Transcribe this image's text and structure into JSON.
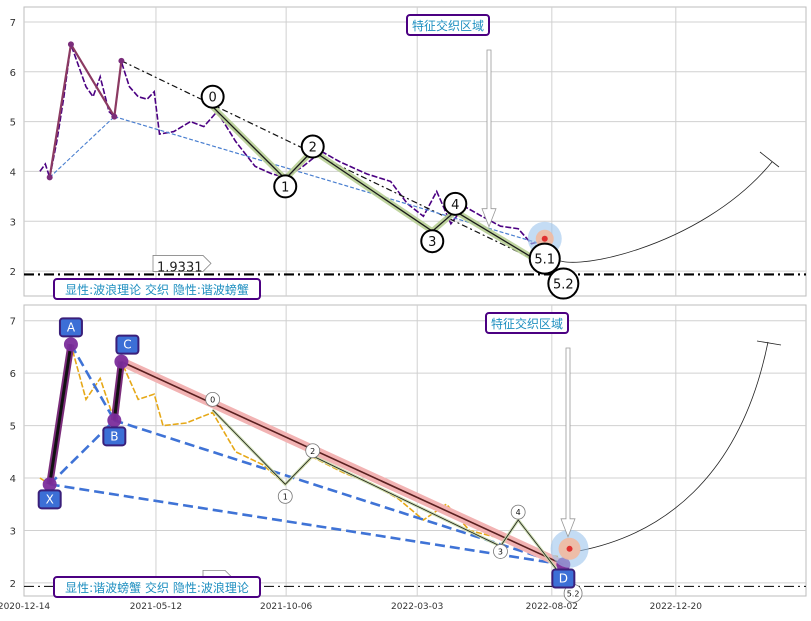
{
  "chart_data": [
    {
      "type": "line",
      "title": "",
      "xlabel": "",
      "ylabel": "",
      "ylim": [
        1.5,
        7.3
      ],
      "yticks": [
        2,
        3,
        4,
        5,
        6,
        7
      ],
      "xlim": [
        "2020-12-14",
        "2023-05-16"
      ],
      "grid": true,
      "series": [
        {
          "color": "#4b0082",
          "style": "dashed",
          "values": [
            [
              "2021-01-01",
              4.0
            ],
            [
              "2021-01-07",
              4.15
            ],
            [
              "2021-01-12",
              3.88
            ],
            [
              "2021-01-20",
              4.6
            ],
            [
              "2021-01-28",
              5.5
            ],
            [
              "2021-02-05",
              6.55
            ],
            [
              "2021-02-14",
              6.1
            ],
            [
              "2021-02-22",
              5.7
            ],
            [
              "2021-03-02",
              5.5
            ],
            [
              "2021-03-10",
              5.9
            ],
            [
              "2021-03-20",
              5.2
            ],
            [
              "2021-03-26",
              5.1
            ],
            [
              "2021-04-03",
              6.2
            ],
            [
              "2021-04-12",
              5.7
            ],
            [
              "2021-04-22",
              5.5
            ],
            [
              "2021-05-02",
              5.45
            ],
            [
              "2021-05-10",
              5.6
            ],
            [
              "2021-05-16",
              4.75
            ],
            [
              "2021-06-01",
              4.8
            ],
            [
              "2021-06-20",
              5.0
            ],
            [
              "2021-07-05",
              4.9
            ],
            [
              "2021-07-20",
              5.2
            ],
            [
              "2021-08-10",
              4.6
            ],
            [
              "2021-09-01",
              4.1
            ],
            [
              "2021-09-20",
              3.95
            ],
            [
              "2021-10-05",
              3.88
            ],
            [
              "2021-10-25",
              4.1
            ],
            [
              "2021-11-15",
              4.4
            ],
            [
              "2021-12-05",
              4.2
            ],
            [
              "2022-01-05",
              3.95
            ],
            [
              "2022-02-01",
              3.8
            ],
            [
              "2022-02-20",
              3.35
            ],
            [
              "2022-03-10",
              3.1
            ],
            [
              "2022-03-25",
              3.6
            ],
            [
              "2022-04-10",
              2.95
            ],
            [
              "2022-04-25",
              3.3
            ],
            [
              "2022-05-15",
              3.1
            ],
            [
              "2022-06-05",
              2.9
            ],
            [
              "2022-06-25",
              2.85
            ],
            [
              "2022-07-10",
              2.55
            ],
            [
              "2022-07-20",
              2.6
            ]
          ]
        }
      ],
      "pattern_points": [
        {
          "x": "2021-01-12",
          "y": 3.88
        },
        {
          "x": "2021-02-05",
          "y": 6.55
        },
        {
          "x": "2021-03-26",
          "y": 5.1
        },
        {
          "x": "2021-04-03",
          "y": 6.22
        }
      ],
      "wave_labels": [
        {
          "label": "0",
          "x": "2021-07-15",
          "y": 5.5
        },
        {
          "label": "1",
          "x": "2021-10-05",
          "y": 3.7
        },
        {
          "label": "2",
          "x": "2021-11-05",
          "y": 4.5
        },
        {
          "label": "3",
          "x": "2022-03-20",
          "y": 2.6
        },
        {
          "label": "4",
          "x": "2022-04-15",
          "y": 3.35
        },
        {
          "label": "5.1",
          "x": "2022-07-25",
          "y": 2.25
        },
        {
          "label": "5.2",
          "x": "2022-08-15",
          "y": 1.75
        }
      ],
      "reference_line": {
        "y": 1.9331,
        "label": "1.9331"
      },
      "target_zone": {
        "x": "2022-07-25",
        "y": 2.65,
        "label": "特征交织区域"
      },
      "legend_text": "显性:波浪理论 交织 隐性:谐波螃蟹"
    },
    {
      "type": "line",
      "title": "",
      "xlabel": "",
      "ylabel": "",
      "ylim": [
        1.75,
        7.3
      ],
      "yticks": [
        2,
        3,
        4,
        5,
        6,
        7
      ],
      "xlim": [
        "2020-12-14",
        "2023-05-16"
      ],
      "xticks": [
        "2020-12-14",
        "2021-05-12",
        "2021-10-06",
        "2022-03-03",
        "2022-08-02",
        "2022-12-20"
      ],
      "grid": true,
      "series": [
        {
          "color": "#e6a817",
          "style": "dashed",
          "values": [
            [
              "2021-01-01",
              4.0
            ],
            [
              "2021-01-12",
              3.88
            ],
            [
              "2021-01-28",
              5.4
            ],
            [
              "2021-02-05",
              6.55
            ],
            [
              "2021-02-22",
              5.5
            ],
            [
              "2021-03-10",
              5.9
            ],
            [
              "2021-03-26",
              5.1
            ],
            [
              "2021-04-03",
              6.22
            ],
            [
              "2021-04-22",
              5.5
            ],
            [
              "2021-05-10",
              5.6
            ],
            [
              "2021-05-20",
              5.0
            ],
            [
              "2021-06-15",
              5.05
            ],
            [
              "2021-07-15",
              5.25
            ],
            [
              "2021-08-10",
              4.5
            ],
            [
              "2021-09-10",
              4.25
            ],
            [
              "2021-10-05",
              3.88
            ],
            [
              "2021-11-05",
              4.4
            ],
            [
              "2021-12-10",
              4.1
            ],
            [
              "2022-01-10",
              3.9
            ],
            [
              "2022-02-10",
              3.6
            ],
            [
              "2022-03-10",
              3.2
            ],
            [
              "2022-04-05",
              3.5
            ],
            [
              "2022-05-01",
              3.0
            ],
            [
              "2022-06-05",
              2.85
            ],
            [
              "2022-06-25",
              2.75
            ],
            [
              "2022-07-20",
              2.55
            ],
            [
              "2022-08-10",
              2.5
            ]
          ]
        }
      ],
      "pattern_points": [
        {
          "label": "X",
          "x": "2021-01-12",
          "y": 3.88
        },
        {
          "label": "A",
          "x": "2021-02-05",
          "y": 6.55
        },
        {
          "label": "B",
          "x": "2021-03-26",
          "y": 5.1
        },
        {
          "label": "C",
          "x": "2021-04-03",
          "y": 6.22
        },
        {
          "label": "D",
          "x": "2022-08-15",
          "y": 2.35
        }
      ],
      "wave_labels": [
        {
          "label": "0",
          "x": "2021-07-15",
          "y": 5.5
        },
        {
          "label": "1",
          "x": "2021-10-05",
          "y": 3.65
        },
        {
          "label": "2",
          "x": "2021-11-05",
          "y": 4.52
        },
        {
          "label": "3",
          "x": "2022-06-05",
          "y": 2.6
        },
        {
          "label": "4",
          "x": "2022-06-25",
          "y": 3.35
        },
        {
          "label": "5.2",
          "x": "2022-08-26",
          "y": 1.8
        }
      ],
      "reference_line": {
        "y": 1.9331,
        "label": "1.9331"
      },
      "target_zone": {
        "x": "2022-08-22",
        "y": 2.65,
        "label": "特征交织区域"
      },
      "legend_text": "显性:谐波螃蟹 交织 隐性:波浪理论"
    }
  ]
}
